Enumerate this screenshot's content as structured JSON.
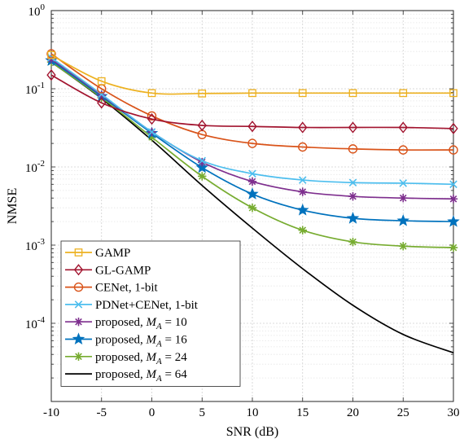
{
  "chart_data": {
    "type": "line",
    "xlabel": "SNR (dB)",
    "ylabel": "NMSE",
    "x": [
      -10,
      -5,
      0,
      5,
      10,
      15,
      20,
      25,
      30
    ],
    "xlim": [
      -10,
      30
    ],
    "xticks": [
      "-10",
      "-5",
      "0",
      "5",
      "10",
      "15",
      "20",
      "25",
      "30"
    ],
    "ylim": [
      1e-05,
      1
    ],
    "yscale": "log",
    "yticks": [
      {
        "base": "10",
        "exp": "0"
      },
      {
        "base": "10",
        "exp": "-1"
      },
      {
        "base": "10",
        "exp": "-2"
      },
      {
        "base": "10",
        "exp": "-3"
      },
      {
        "base": "10",
        "exp": "-4"
      }
    ],
    "grid": true,
    "legend_position": "bottom-left",
    "series": [
      {
        "name": "GAMP",
        "color": "#EDB120",
        "marker": "square",
        "values": [
          0.27,
          0.125,
          0.088,
          0.087,
          0.088,
          0.088,
          0.088,
          0.088,
          0.088
        ]
      },
      {
        "name": "GL-GAMP",
        "color": "#A2142F",
        "marker": "diamond",
        "values": [
          0.15,
          0.066,
          0.041,
          0.034,
          0.033,
          0.032,
          0.032,
          0.032,
          0.031
        ]
      },
      {
        "name": "CENet, 1-bit",
        "color": "#D95319",
        "marker": "circle",
        "values": [
          0.28,
          0.1,
          0.045,
          0.026,
          0.02,
          0.018,
          0.017,
          0.0165,
          0.0165
        ]
      },
      {
        "name": "PDNet+CENet, 1-bit",
        "color": "#4DBEEE",
        "marker": "x",
        "values": [
          0.25,
          0.085,
          0.028,
          0.012,
          0.0082,
          0.0068,
          0.0063,
          0.0062,
          0.006
        ]
      },
      {
        "name": "proposed, ",
        "math": {
          "base": "M",
          "sub": "A",
          "rhs": " = 10"
        },
        "color": "#7E2F8E",
        "marker": "asterisk",
        "values": [
          0.24,
          0.083,
          0.028,
          0.0115,
          0.0065,
          0.0048,
          0.0042,
          0.004,
          0.0039
        ]
      },
      {
        "name": "proposed, ",
        "math": {
          "base": "M",
          "sub": "A",
          "rhs": " = 16"
        },
        "color": "#0072BD",
        "marker": "star",
        "values": [
          0.23,
          0.08,
          0.027,
          0.0098,
          0.0045,
          0.0028,
          0.0022,
          0.00205,
          0.002
        ]
      },
      {
        "name": "proposed, ",
        "math": {
          "base": "M",
          "sub": "A",
          "rhs": " = 24"
        },
        "color": "#77AC30",
        "marker": "asterisk",
        "values": [
          0.22,
          0.077,
          0.024,
          0.0076,
          0.003,
          0.00155,
          0.0011,
          0.00097,
          0.00093
        ]
      },
      {
        "name": "proposed, ",
        "math": {
          "base": "M",
          "sub": "A",
          "rhs": " = 64"
        },
        "color": "#000000",
        "marker": "none",
        "values": [
          0.22,
          0.075,
          0.022,
          0.0058,
          0.00165,
          0.0005,
          0.00017,
          7.2e-05,
          4.2e-05
        ]
      }
    ]
  }
}
